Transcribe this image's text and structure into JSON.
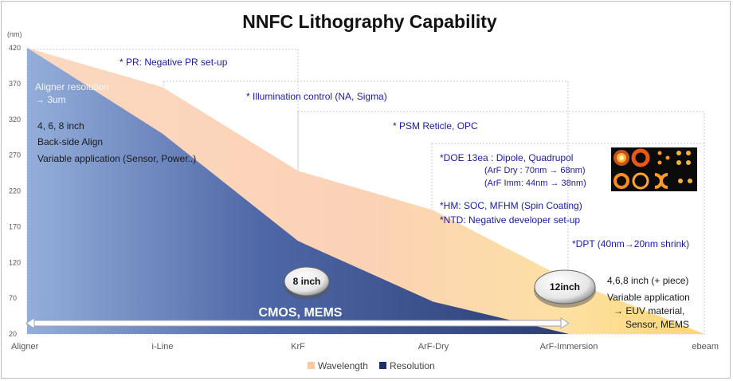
{
  "chart_data": {
    "type": "area",
    "title": "NNFC Lithography Capability",
    "ylabel": "(nm)",
    "ylim": [
      20,
      420
    ],
    "yticks": [
      420,
      370,
      320,
      270,
      220,
      170,
      120,
      70,
      20
    ],
    "categories": [
      "Aligner",
      "i-Line",
      "KrF",
      "ArF-Dry",
      "ArF-Immersion",
      "ebeam"
    ],
    "series": [
      {
        "name": "Wavelength",
        "color": "#f9c9a6",
        "values": [
          420,
          365,
          248,
          193,
          95,
          20
        ]
      },
      {
        "name": "Resolution",
        "color": "#1f3068",
        "values": [
          420,
          300,
          150,
          65,
          20,
          20
        ]
      }
    ],
    "legend_position": "bottom",
    "grid": false
  },
  "annotations": {
    "aligner_resolution": "Aligner resolution",
    "aligner_resolution_value": "→ 3um",
    "aligner_sizes": "4, 6, 8 inch",
    "backside_align": "Back-side Align",
    "aligner_application": "Variable application (Sensor, Power..)",
    "pr": "* PR: Negative PR set-up",
    "illumination": "* Illumination control (NA, Sigma)",
    "psm": "* PSM Reticle, OPC",
    "doe": "*DOE 13ea : Dipole, Quadrupol",
    "doe_arf_dry": "(ArF Dry : 70nm → 68nm)",
    "doe_arf_imm": "(ArF Imm: 44nm → 38nm)",
    "hm": "*HM: SOC, MFHM (Spin Coating)",
    "ntd": "*NTD: Negative developer set-up",
    "dpt": "*DPT (40nm→20nm shrink)",
    "ebeam_sizes": "4,6,8 inch (+ piece)",
    "ebeam_application": "Variable application",
    "ebeam_euv": "→ EUV material,",
    "ebeam_sensor": "Sensor, MEMS",
    "cmos": "CMOS, MEMS",
    "wafer_8": "8 inch",
    "wafer_12": "12inch"
  },
  "colors": {
    "annotation_blue": "#1a1aa6",
    "wavelength_light": "#fde7d4",
    "wavelength_yellow": "#fdd878",
    "resolution_light": "#94aedb",
    "resolution_dark": "#1f3068"
  },
  "icons": {
    "illumination_patterns": "doe-illumination-patterns-image"
  }
}
